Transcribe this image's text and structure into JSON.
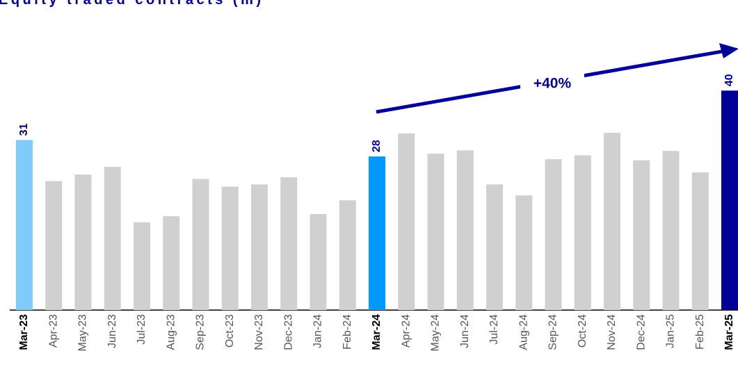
{
  "chart_data": {
    "type": "bar",
    "title": "Equity traded contracts (m)",
    "categories": [
      "Mar-23",
      "Apr-23",
      "May-23",
      "Jun-23",
      "Jul-23",
      "Aug-23",
      "Sep-23",
      "Oct-23",
      "Nov-23",
      "Dec-23",
      "Jan-24",
      "Feb-24",
      "Mar-24",
      "Apr-24",
      "May-24",
      "Jun-24",
      "Jul-24",
      "Aug-24",
      "Sep-24",
      "Oct-24",
      "Nov-24",
      "Dec-24",
      "Jan-25",
      "Feb-25",
      "Mar-25"
    ],
    "values": [
      31,
      23.5,
      24.7,
      26.1,
      16.0,
      17.1,
      23.9,
      22.5,
      22.9,
      24.2,
      17.5,
      20.0,
      28,
      32.2,
      28.5,
      29.1,
      22.9,
      20.9,
      27.5,
      28.2,
      32.3,
      27.3,
      29.0,
      25.1,
      40
    ],
    "value_labels": [
      "31",
      null,
      null,
      null,
      null,
      null,
      null,
      null,
      null,
      null,
      null,
      null,
      "28",
      null,
      null,
      null,
      null,
      null,
      null,
      null,
      null,
      null,
      null,
      null,
      "40"
    ],
    "colors": [
      "#7fcbf9",
      "#d0d0d0",
      "#d0d0d0",
      "#d0d0d0",
      "#d0d0d0",
      "#d0d0d0",
      "#d0d0d0",
      "#d0d0d0",
      "#d0d0d0",
      "#d0d0d0",
      "#d0d0d0",
      "#d0d0d0",
      "#0099fe",
      "#d0d0d0",
      "#d0d0d0",
      "#d0d0d0",
      "#d0d0d0",
      "#d0d0d0",
      "#d0d0d0",
      "#d0d0d0",
      "#d0d0d0",
      "#d0d0d0",
      "#d0d0d0",
      "#d0d0d0",
      "#000099"
    ],
    "ylim": [
      0,
      56
    ],
    "annotation": "+40%"
  }
}
